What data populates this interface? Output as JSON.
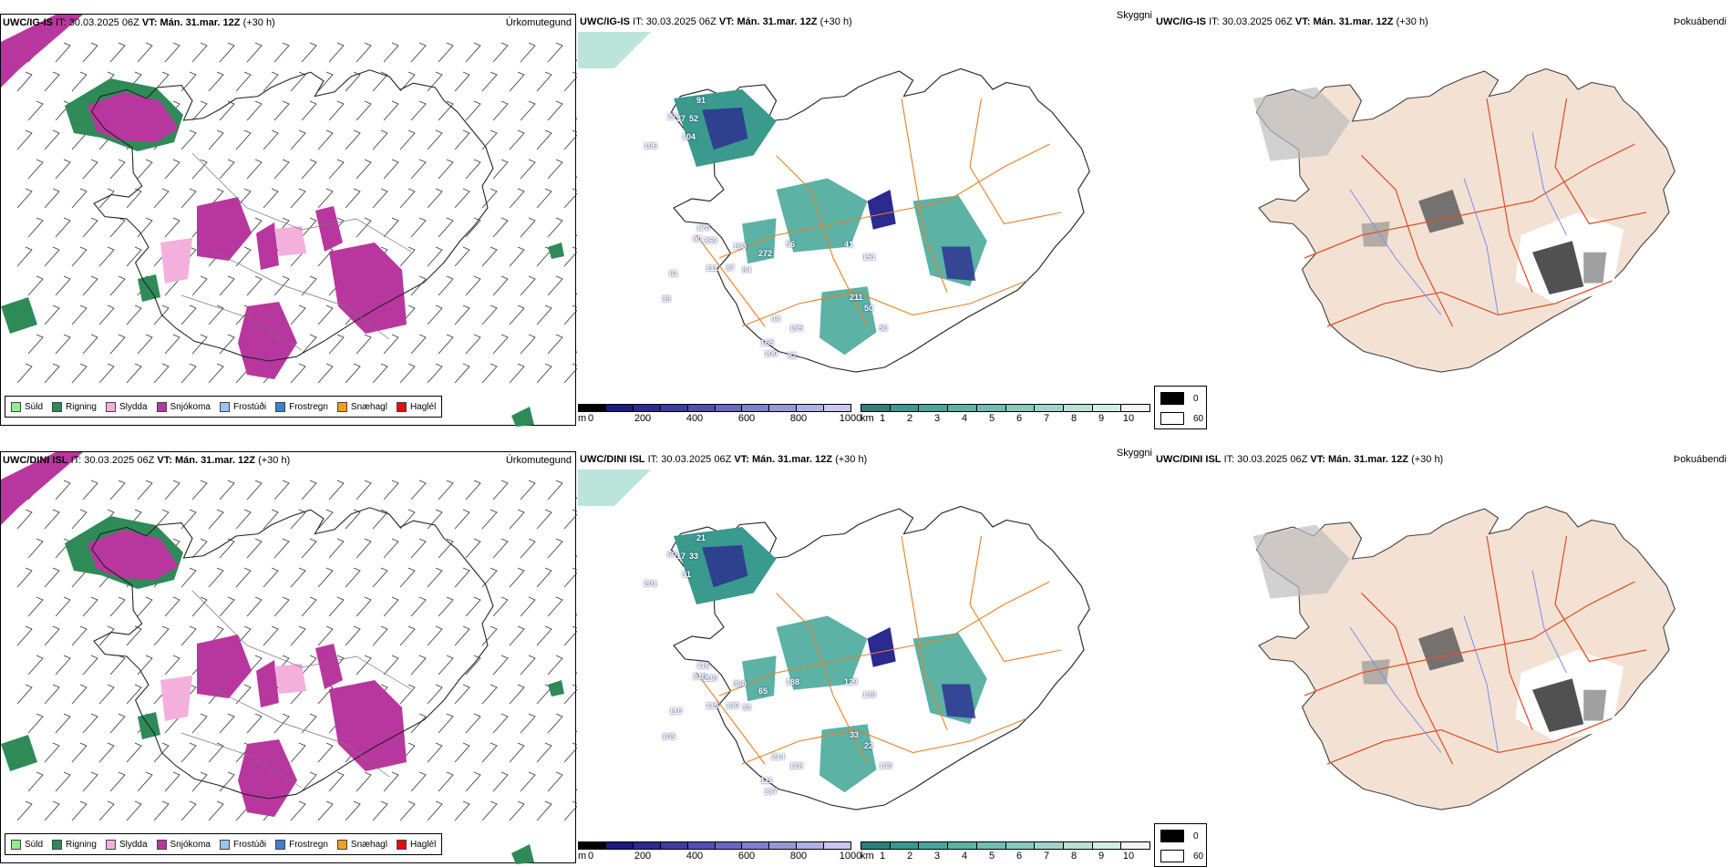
{
  "rows": [
    {
      "model": "UWC/IG-IS",
      "it_label": "IT:",
      "it_value": "30.03.2025 06Z",
      "vt_label": "VT:",
      "vt_value": "Mán. 31.mar. 12Z",
      "lead": "(+30 h)",
      "left_panel_label": "Úrkomutegund",
      "middle_panel_label": "Skyggni",
      "right_panel_label": "Þokuábendi",
      "visibility_labels": [
        "91",
        "27",
        "37",
        "52",
        "104",
        "106",
        "170",
        "80",
        "369",
        "163",
        "272",
        "56",
        "41",
        "151",
        "111",
        "87",
        "84",
        "61",
        "39",
        "211",
        "50",
        "50",
        "44",
        "195",
        "165",
        "100",
        "82"
      ]
    },
    {
      "model": "UWC/DINI ISL",
      "it_label": "IT:",
      "it_value": "30.03.2025 06Z",
      "vt_label": "VT:",
      "vt_value": "Mán. 31.mar. 12Z",
      "lead": "(+30 h)",
      "left_panel_label": "Úrkomutegund",
      "middle_panel_label": "Skyggni",
      "right_panel_label": "Þokuábendi",
      "visibility_labels": [
        "21",
        "60",
        "17",
        "33",
        "91",
        "201",
        "116",
        "210",
        "230",
        "360",
        "65",
        "188",
        "129",
        "139",
        "115",
        "130",
        "33",
        "110",
        "105",
        "33",
        "22",
        "130",
        "214",
        "128",
        "111",
        "137"
      ]
    }
  ],
  "precip_legend": [
    {
      "label": "Súld",
      "color": "#90ee90"
    },
    {
      "label": "Rigning",
      "color": "#2e8b57"
    },
    {
      "label": "Slydda",
      "color": "#f4b0dc"
    },
    {
      "label": "Snjókoma",
      "color": "#b8379e"
    },
    {
      "label": "Frostúði",
      "color": "#9cc4f0"
    },
    {
      "label": "Frostregn",
      "color": "#3f7fd0"
    },
    {
      "label": "Snæhagl",
      "color": "#f0a020"
    },
    {
      "label": "Haglél",
      "color": "#e01010"
    }
  ],
  "scale_m": {
    "unit": "m",
    "ticks": [
      "0",
      "200",
      "400",
      "600",
      "800",
      "1000"
    ]
  },
  "scale_km": {
    "unit": "km",
    "ticks": [
      "1",
      "2",
      "3",
      "4",
      "5",
      "6",
      "7",
      "8",
      "9",
      "10"
    ]
  },
  "fog_legend": [
    {
      "label": "0",
      "color": "#000000"
    },
    {
      "label": "60",
      "color": "#ffffff"
    }
  ],
  "colors": {
    "land_fill": "#f3e2d4",
    "roads": "#e8822a",
    "rivers": "#7a8cf0",
    "snow_purple": "#b8379e",
    "rain_green": "#2e8b57",
    "vis_blue": "#2a2a90",
    "vis_teal": "#3a9a8e"
  }
}
